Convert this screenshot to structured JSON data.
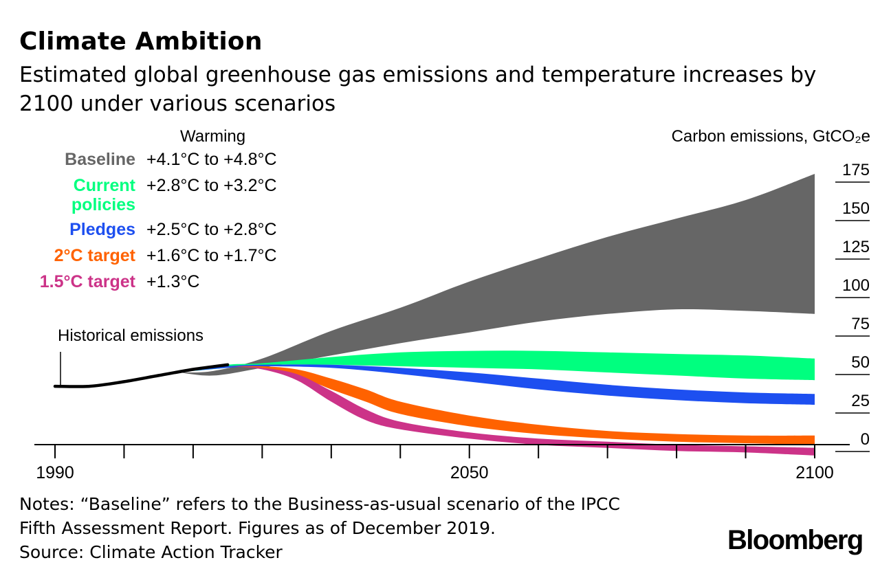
{
  "header": {
    "title": "Climate Ambition",
    "subtitle": "Estimated global greenhouse gas emissions and temperature increases by 2100 under various scenarios"
  },
  "chart_data": {
    "type": "area",
    "x_label": "",
    "y_label": "Carbon emissions, GtCO₂e",
    "legend_header": "Warming",
    "x_ticks": [
      1990,
      2050,
      2100
    ],
    "x_minor_ticks": [
      1995,
      2000,
      2005,
      2010,
      2015,
      2020,
      2025,
      2030,
      2035,
      2040,
      2045,
      2050,
      2055,
      2060,
      2065,
      2070,
      2075,
      2080,
      2085,
      2090,
      2095,
      2100
    ],
    "y_ticks": [
      0,
      25,
      50,
      75,
      100,
      125,
      150,
      175
    ],
    "x_range": [
      1990,
      2100
    ],
    "y_range": [
      0,
      175
    ],
    "historical": {
      "label": "Historical emissions",
      "color": "#000000",
      "points": [
        [
          1990,
          37
        ],
        [
          1995,
          37
        ],
        [
          2000,
          40
        ],
        [
          2005,
          44
        ],
        [
          2010,
          48
        ],
        [
          2015,
          51
        ]
      ]
    },
    "scenarios": [
      {
        "name": "Baseline",
        "warming": "+4.1°C to +4.8°C",
        "color": "#666666",
        "upper": [
          [
            2008,
            46
          ],
          [
            2013,
            47
          ],
          [
            2020,
            55
          ],
          [
            2030,
            73
          ],
          [
            2040,
            88
          ],
          [
            2050,
            105
          ],
          [
            2060,
            120
          ],
          [
            2070,
            134
          ],
          [
            2080,
            146
          ],
          [
            2090,
            158
          ],
          [
            2100,
            175
          ]
        ],
        "lower": [
          [
            2008,
            46
          ],
          [
            2013,
            44
          ],
          [
            2020,
            49
          ],
          [
            2030,
            57
          ],
          [
            2040,
            65
          ],
          [
            2050,
            72
          ],
          [
            2060,
            79
          ],
          [
            2070,
            84
          ],
          [
            2080,
            87
          ],
          [
            2090,
            86
          ],
          [
            2100,
            84
          ]
        ]
      },
      {
        "name": "Current policies",
        "warming": "+2.8°C to +3.2°C",
        "color": "#00ff7f",
        "upper": [
          [
            2010,
            47
          ],
          [
            2015,
            51
          ],
          [
            2020,
            52
          ],
          [
            2030,
            56
          ],
          [
            2040,
            59
          ],
          [
            2050,
            60
          ],
          [
            2060,
            60
          ],
          [
            2070,
            59
          ],
          [
            2080,
            58
          ],
          [
            2090,
            57
          ],
          [
            2100,
            55
          ]
        ],
        "lower": [
          [
            2010,
            47
          ],
          [
            2015,
            49
          ],
          [
            2020,
            51
          ],
          [
            2030,
            51
          ],
          [
            2040,
            50
          ],
          [
            2050,
            49
          ],
          [
            2060,
            48
          ],
          [
            2070,
            46
          ],
          [
            2080,
            44
          ],
          [
            2090,
            42
          ],
          [
            2100,
            41
          ]
        ]
      },
      {
        "name": "Pledges",
        "warming": "+2.5°C to +2.8°C",
        "color": "#1d4ff0",
        "upper": [
          [
            2010,
            47
          ],
          [
            2015,
            50
          ],
          [
            2020,
            51
          ],
          [
            2030,
            51
          ],
          [
            2040,
            49
          ],
          [
            2050,
            46
          ],
          [
            2060,
            42
          ],
          [
            2070,
            38
          ],
          [
            2080,
            35
          ],
          [
            2090,
            33
          ],
          [
            2100,
            32
          ]
        ],
        "lower": [
          [
            2010,
            47
          ],
          [
            2015,
            49
          ],
          [
            2020,
            50
          ],
          [
            2030,
            49
          ],
          [
            2040,
            45
          ],
          [
            2050,
            40
          ],
          [
            2060,
            35
          ],
          [
            2070,
            31
          ],
          [
            2080,
            28
          ],
          [
            2090,
            26
          ],
          [
            2100,
            25
          ]
        ]
      },
      {
        "name": "2°C target",
        "warming": "+1.6°C to +1.7°C",
        "color": "#ff6200",
        "upper": [
          [
            2015,
            50
          ],
          [
            2020,
            50
          ],
          [
            2025,
            48
          ],
          [
            2030,
            42
          ],
          [
            2035,
            35
          ],
          [
            2040,
            27
          ],
          [
            2050,
            18
          ],
          [
            2060,
            12
          ],
          [
            2070,
            8
          ],
          [
            2080,
            6
          ],
          [
            2090,
            5
          ],
          [
            2100,
            5
          ]
        ],
        "lower": [
          [
            2015,
            50
          ],
          [
            2020,
            49
          ],
          [
            2025,
            44
          ],
          [
            2030,
            35
          ],
          [
            2035,
            27
          ],
          [
            2040,
            19
          ],
          [
            2050,
            11
          ],
          [
            2060,
            6
          ],
          [
            2070,
            3
          ],
          [
            2080,
            1
          ],
          [
            2090,
            0
          ],
          [
            2100,
            -1
          ]
        ]
      },
      {
        "name": "1.5°C target",
        "warming": "+1.3°C",
        "color": "#cc3388",
        "upper": [
          [
            2015,
            50
          ],
          [
            2020,
            49
          ],
          [
            2025,
            45
          ],
          [
            2030,
            34
          ],
          [
            2035,
            22
          ],
          [
            2040,
            14
          ],
          [
            2050,
            7
          ],
          [
            2060,
            3
          ],
          [
            2070,
            1
          ],
          [
            2080,
            -1
          ],
          [
            2090,
            -2
          ],
          [
            2100,
            -3
          ]
        ],
        "lower": [
          [
            2015,
            50
          ],
          [
            2020,
            48
          ],
          [
            2025,
            41
          ],
          [
            2030,
            27
          ],
          [
            2035,
            15
          ],
          [
            2040,
            9
          ],
          [
            2050,
            3
          ],
          [
            2060,
            -1
          ],
          [
            2070,
            -3
          ],
          [
            2080,
            -5
          ],
          [
            2090,
            -6
          ],
          [
            2100,
            -8
          ]
        ]
      }
    ]
  },
  "legend_labels": [
    [
      "Baseline"
    ],
    [
      "Current",
      "policies"
    ],
    [
      "Pledges"
    ],
    [
      "2°C target"
    ],
    [
      "1.5°C target"
    ]
  ],
  "notes": {
    "line1": "Notes: “Baseline” refers to the Business-as-usual scenario of the IPCC",
    "line2": "Fifth Assessment Report. Figures as of December 2019.",
    "line3": "Source: Climate Action Tracker"
  },
  "brand": "Bloomberg"
}
